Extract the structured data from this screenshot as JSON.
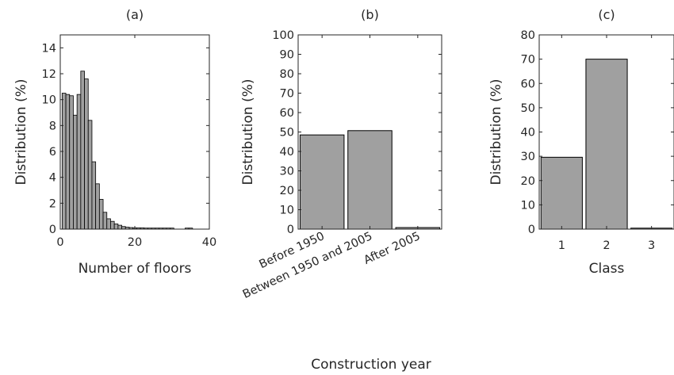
{
  "chart_data": [
    {
      "type": "bar",
      "panel": "(a)",
      "title": "(a)",
      "xlabel": "Number of floors",
      "ylabel": "Distribution (%)",
      "xlim": [
        0,
        40
      ],
      "ylim": [
        0,
        15
      ],
      "xticks": [
        0,
        20,
        40
      ],
      "yticks": [
        0,
        2,
        4,
        6,
        8,
        10,
        12,
        14
      ],
      "bar_color": "#a0a0a0",
      "x": [
        1,
        2,
        3,
        4,
        5,
        6,
        7,
        8,
        9,
        10,
        11,
        12,
        13,
        14,
        15,
        16,
        17,
        18,
        19,
        20,
        21,
        22,
        23,
        24,
        25,
        26,
        27,
        28,
        29,
        30,
        31,
        32,
        33,
        34,
        35
      ],
      "values": [
        10.5,
        10.4,
        10.3,
        8.8,
        10.4,
        12.2,
        11.6,
        8.4,
        5.2,
        3.5,
        2.3,
        1.3,
        0.8,
        0.6,
        0.4,
        0.3,
        0.2,
        0.15,
        0.12,
        0.1,
        0.1,
        0.1,
        0.08,
        0.08,
        0.08,
        0.08,
        0.08,
        0.08,
        0.08,
        0.08,
        0,
        0,
        0,
        0.08,
        0.08
      ]
    },
    {
      "type": "bar",
      "panel": "(b)",
      "title": "(b)",
      "xlabel": "Construction year",
      "ylabel": "Distribution (%)",
      "ylim": [
        0,
        100
      ],
      "yticks": [
        0,
        10,
        20,
        30,
        40,
        50,
        60,
        70,
        80,
        90,
        100
      ],
      "bar_color": "#a0a0a0",
      "categories": [
        "Before 1950",
        "Between 1950 and 2005",
        "After 2005"
      ],
      "values": [
        48.5,
        50.7,
        0.8
      ]
    },
    {
      "type": "bar",
      "panel": "(c)",
      "title": "(c)",
      "xlabel": "Class",
      "ylabel": "Distribution (%)",
      "ylim": [
        0,
        80
      ],
      "yticks": [
        0,
        10,
        20,
        30,
        40,
        50,
        60,
        70,
        80
      ],
      "bar_color": "#a0a0a0",
      "categories": [
        "1",
        "2",
        "3"
      ],
      "values": [
        29.6,
        70.0,
        0.4
      ]
    }
  ]
}
